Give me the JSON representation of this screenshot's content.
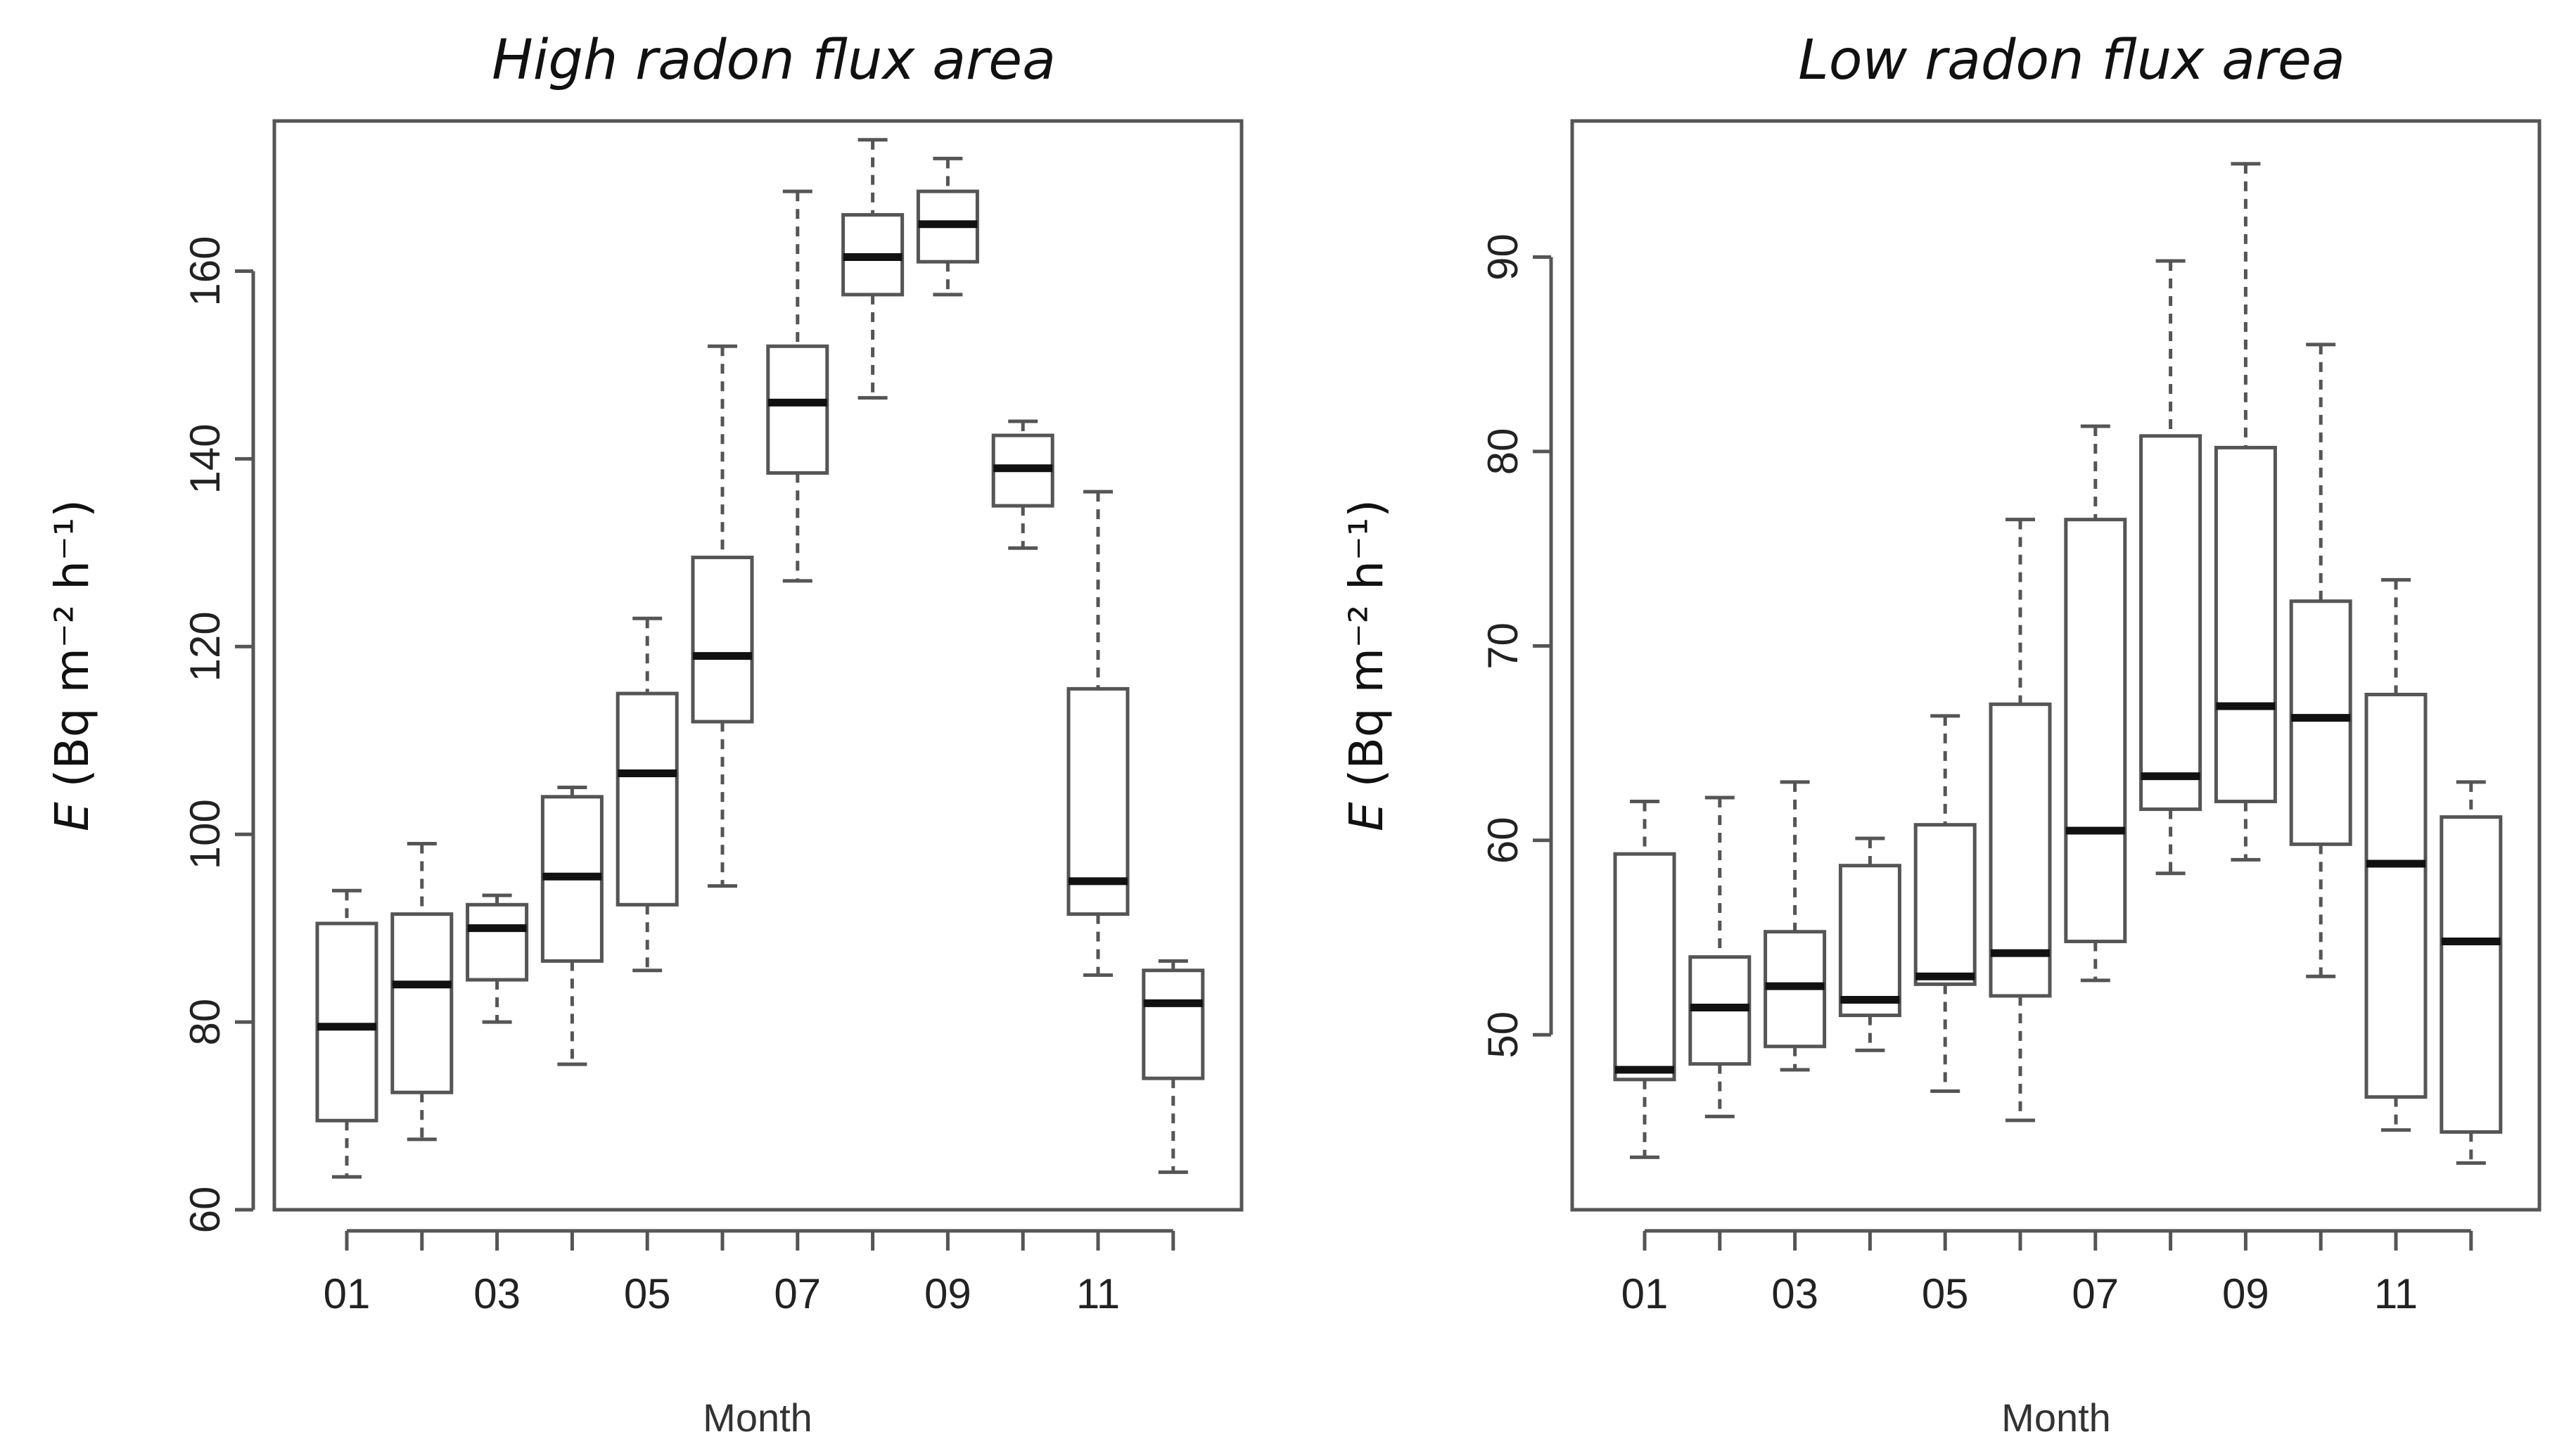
{
  "chart_data": [
    {
      "type": "box",
      "title": "High radon flux area",
      "xlabel": "Month",
      "ylabel_symbol": "E",
      "ylabel_units": "(Bq m⁻² h⁻¹)",
      "ylim": [
        60,
        176
      ],
      "yticks": [
        "60",
        "80",
        "100",
        "120",
        "140",
        "160"
      ],
      "ytick_values": [
        60,
        80,
        100,
        120,
        140,
        160
      ],
      "xticks": [
        "01",
        "03",
        "05",
        "07",
        "09",
        "11"
      ],
      "xtick_months": [
        1,
        3,
        5,
        7,
        9,
        11
      ],
      "categories": [
        "01",
        "02",
        "03",
        "04",
        "05",
        "06",
        "07",
        "08",
        "09",
        "10",
        "11",
        "12"
      ],
      "boxes": [
        {
          "month": "01",
          "min": 63.5,
          "q1": 69.5,
          "median": 79.5,
          "q3": 90.5,
          "max": 94
        },
        {
          "month": "02",
          "min": 67.5,
          "q1": 72.5,
          "median": 84,
          "q3": 91.5,
          "max": 99
        },
        {
          "month": "03",
          "min": 80,
          "q1": 84.5,
          "median": 90,
          "q3": 92.5,
          "max": 93.5
        },
        {
          "month": "04",
          "min": 75.5,
          "q1": 86.5,
          "median": 95.5,
          "q3": 104,
          "max": 105
        },
        {
          "month": "05",
          "min": 85.5,
          "q1": 92.5,
          "median": 106.5,
          "q3": 115,
          "max": 123
        },
        {
          "month": "06",
          "min": 94.5,
          "q1": 112,
          "median": 119,
          "q3": 129.5,
          "max": 152
        },
        {
          "month": "07",
          "min": 127,
          "q1": 138.5,
          "median": 146,
          "q3": 152,
          "max": 168.5
        },
        {
          "month": "08",
          "min": 146.5,
          "q1": 157.5,
          "median": 161.5,
          "q3": 166,
          "max": 174
        },
        {
          "month": "09",
          "min": 157.5,
          "q1": 161,
          "median": 165,
          "q3": 168.5,
          "max": 172
        },
        {
          "month": "10",
          "min": 130.5,
          "q1": 135,
          "median": 139,
          "q3": 142.5,
          "max": 144
        },
        {
          "month": "11",
          "min": 85,
          "q1": 91.5,
          "median": 95,
          "q3": 115.5,
          "max": 136.5
        },
        {
          "month": "12",
          "min": 64,
          "q1": 74,
          "median": 82,
          "q3": 85.5,
          "max": 86.5
        }
      ]
    },
    {
      "type": "box",
      "title": "Low radon flux area",
      "xlabel": "Month",
      "ylabel_symbol": "E",
      "ylabel_units": "(Bq m⁻² h⁻¹)",
      "ylim": [
        41,
        97
      ],
      "yticks": [
        "50",
        "60",
        "70",
        "80",
        "90"
      ],
      "ytick_values": [
        50,
        60,
        70,
        80,
        90
      ],
      "xticks": [
        "01",
        "03",
        "05",
        "07",
        "09",
        "11"
      ],
      "xtick_months": [
        1,
        3,
        5,
        7,
        9,
        11
      ],
      "categories": [
        "01",
        "02",
        "03",
        "04",
        "05",
        "06",
        "07",
        "08",
        "09",
        "10",
        "11",
        "12"
      ],
      "boxes": [
        {
          "month": "01",
          "min": 43.7,
          "q1": 47.7,
          "median": 48.2,
          "q3": 59.3,
          "max": 62
        },
        {
          "month": "02",
          "min": 45.8,
          "q1": 48.5,
          "median": 51.4,
          "q3": 54,
          "max": 62.2
        },
        {
          "month": "03",
          "min": 48.2,
          "q1": 49.4,
          "median": 52.5,
          "q3": 55.3,
          "max": 63
        },
        {
          "month": "04",
          "min": 49.2,
          "q1": 51,
          "median": 51.8,
          "q3": 58.7,
          "max": 60.1
        },
        {
          "month": "05",
          "min": 47.1,
          "q1": 52.6,
          "median": 53,
          "q3": 60.8,
          "max": 66.4
        },
        {
          "month": "06",
          "min": 45.6,
          "q1": 52,
          "median": 54.2,
          "q3": 67,
          "max": 76.5
        },
        {
          "month": "07",
          "min": 52.8,
          "q1": 54.8,
          "median": 60.5,
          "q3": 76.5,
          "max": 81.3
        },
        {
          "month": "08",
          "min": 58.3,
          "q1": 61.6,
          "median": 63.3,
          "q3": 80.8,
          "max": 89.8
        },
        {
          "month": "09",
          "min": 59,
          "q1": 62,
          "median": 66.9,
          "q3": 80.2,
          "max": 94.8
        },
        {
          "month": "10",
          "min": 53,
          "q1": 59.8,
          "median": 66.3,
          "q3": 72.3,
          "max": 85.5
        },
        {
          "month": "11",
          "min": 45.1,
          "q1": 46.8,
          "median": 58.8,
          "q3": 67.5,
          "max": 73.4
        },
        {
          "month": "12",
          "min": 43.4,
          "q1": 45,
          "median": 54.8,
          "q3": 61.2,
          "max": 63
        }
      ]
    }
  ]
}
